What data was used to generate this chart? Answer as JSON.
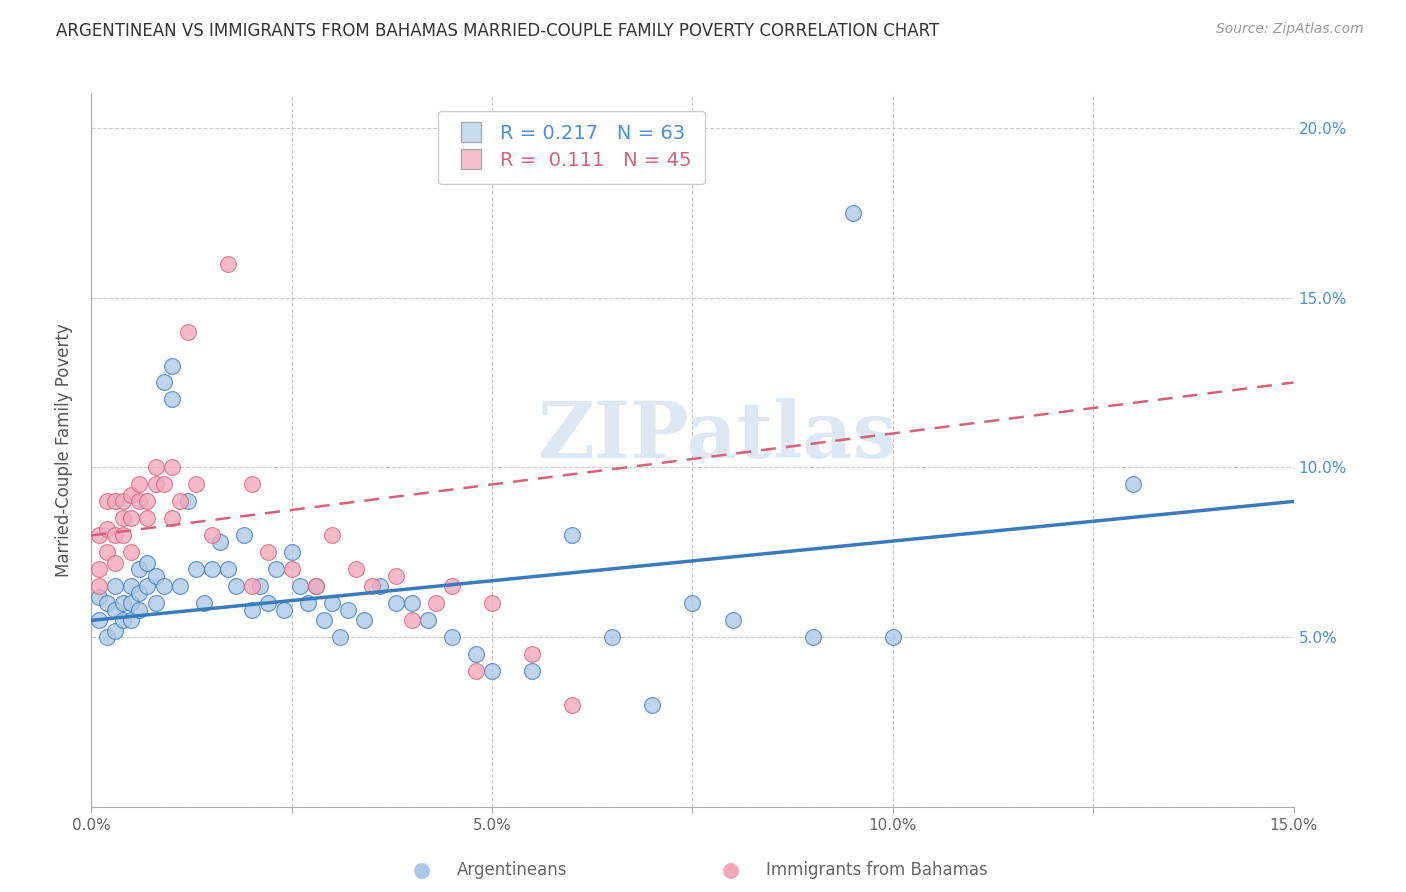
{
  "title": "ARGENTINEAN VS IMMIGRANTS FROM BAHAMAS MARRIED-COUPLE FAMILY POVERTY CORRELATION CHART",
  "source": "Source: ZipAtlas.com",
  "xlabel_label": "Argentineans",
  "xlabel_label2": "Immigrants from Bahamas",
  "ylabel": "Married-Couple Family Poverty",
  "xlim": [
    0.0,
    0.15
  ],
  "ylim": [
    0.0,
    0.21
  ],
  "x_ticks": [
    0.0,
    0.025,
    0.05,
    0.075,
    0.1,
    0.125,
    0.15
  ],
  "x_tick_labels": [
    "0.0%",
    "",
    "5.0%",
    "",
    "10.0%",
    "",
    "15.0%"
  ],
  "y_ticks": [
    0.0,
    0.05,
    0.1,
    0.15,
    0.2
  ],
  "y_tick_labels": [
    "",
    "5.0%",
    "10.0%",
    "15.0%",
    "20.0%"
  ],
  "r_blue": 0.217,
  "n_blue": 63,
  "r_pink": 0.111,
  "n_pink": 45,
  "color_blue": "#adc8e8",
  "color_pink": "#f4a8bc",
  "line_blue": "#3a7abf",
  "line_pink": "#d9607a",
  "watermark": "ZIPatlas",
  "blue_x": [
    0.001,
    0.001,
    0.002,
    0.002,
    0.003,
    0.003,
    0.003,
    0.004,
    0.004,
    0.005,
    0.005,
    0.005,
    0.006,
    0.006,
    0.006,
    0.007,
    0.007,
    0.008,
    0.008,
    0.009,
    0.009,
    0.01,
    0.01,
    0.011,
    0.012,
    0.013,
    0.014,
    0.015,
    0.016,
    0.017,
    0.018,
    0.019,
    0.02,
    0.021,
    0.022,
    0.023,
    0.024,
    0.025,
    0.026,
    0.027,
    0.028,
    0.029,
    0.03,
    0.031,
    0.032,
    0.034,
    0.036,
    0.038,
    0.04,
    0.042,
    0.045,
    0.048,
    0.05,
    0.055,
    0.06,
    0.065,
    0.07,
    0.075,
    0.08,
    0.09,
    0.095,
    0.1,
    0.13
  ],
  "blue_y": [
    0.062,
    0.055,
    0.06,
    0.05,
    0.065,
    0.058,
    0.052,
    0.06,
    0.055,
    0.065,
    0.06,
    0.055,
    0.07,
    0.063,
    0.058,
    0.072,
    0.065,
    0.068,
    0.06,
    0.065,
    0.125,
    0.13,
    0.12,
    0.065,
    0.09,
    0.07,
    0.06,
    0.07,
    0.078,
    0.07,
    0.065,
    0.08,
    0.058,
    0.065,
    0.06,
    0.07,
    0.058,
    0.075,
    0.065,
    0.06,
    0.065,
    0.055,
    0.06,
    0.05,
    0.058,
    0.055,
    0.065,
    0.06,
    0.06,
    0.055,
    0.05,
    0.045,
    0.04,
    0.04,
    0.08,
    0.05,
    0.03,
    0.06,
    0.055,
    0.05,
    0.175,
    0.05,
    0.095
  ],
  "pink_x": [
    0.001,
    0.001,
    0.001,
    0.002,
    0.002,
    0.002,
    0.003,
    0.003,
    0.003,
    0.004,
    0.004,
    0.004,
    0.005,
    0.005,
    0.005,
    0.006,
    0.006,
    0.007,
    0.007,
    0.008,
    0.008,
    0.009,
    0.01,
    0.01,
    0.011,
    0.012,
    0.013,
    0.015,
    0.017,
    0.02,
    0.022,
    0.025,
    0.028,
    0.03,
    0.033,
    0.035,
    0.038,
    0.04,
    0.043,
    0.045,
    0.048,
    0.05,
    0.055,
    0.06,
    0.02
  ],
  "pink_y": [
    0.065,
    0.07,
    0.08,
    0.075,
    0.082,
    0.09,
    0.072,
    0.08,
    0.09,
    0.085,
    0.08,
    0.09,
    0.092,
    0.085,
    0.075,
    0.09,
    0.095,
    0.085,
    0.09,
    0.095,
    0.1,
    0.095,
    0.1,
    0.085,
    0.09,
    0.14,
    0.095,
    0.08,
    0.16,
    0.065,
    0.075,
    0.07,
    0.065,
    0.08,
    0.07,
    0.065,
    0.068,
    0.055,
    0.06,
    0.065,
    0.04,
    0.06,
    0.045,
    0.03,
    0.095
  ]
}
